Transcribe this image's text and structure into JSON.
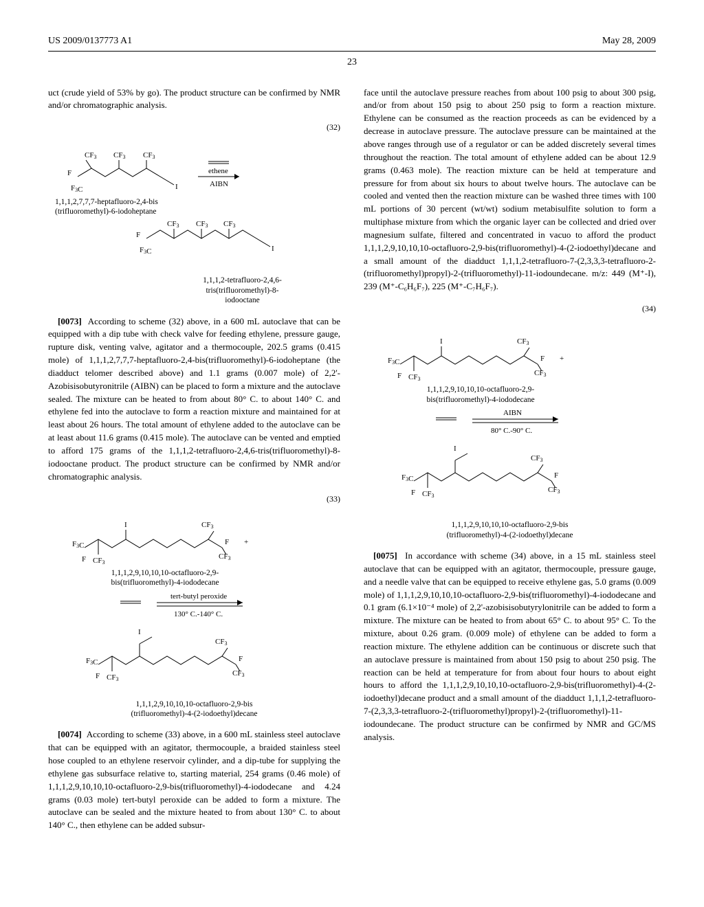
{
  "header": {
    "pub_number": "US 2009/0137773 A1",
    "date": "May 28, 2009"
  },
  "page_number": "23",
  "col1": {
    "intro_continued": "uct (crude yield of 53% by go). The product structure can be confirmed by NMR and/or chromatographic analysis.",
    "scheme32": {
      "num": "(32)",
      "reagent_top": "ethene",
      "reagent_bottom": "AIBN",
      "left_caption": "1,1,1,2,7,7,7-heptafluoro-2,4-bis\n(trifluoromethyl)-6-iodoheptane",
      "right_caption": "1,1,1,2-tetrafluoro-2,4,6-\ntris(trifluoromethyl)-8-\niodooctane"
    },
    "p73_num": "[0073]",
    "p73": "According to scheme (32) above, in a 600 mL autoclave that can be equipped with a dip tube with check valve for feeding ethylene, pressure gauge, rupture disk, venting valve, agitator and a thermocouple, 202.5 grams (0.415 mole) of 1,1,1,2,7,7,7-heptafluoro-2,4-bis(trifluoromethyl)-6-iodoheptane (the diadduct telomer described above) and 1.1 grams (0.007 mole) of 2,2'-Azobisisobutyronitrile (AIBN) can be placed to form a mixture and the autoclave sealed. The mixture can be heated to from about 80° C. to about 140° C. and ethylene fed into the autoclave to form a reaction mixture and maintained for at least about 26 hours. The total amount of ethylene added to the autoclave can be at least about 11.6 grams (0.415 mole). The autoclave can be vented and emptied to afford 175 grams of the 1,1,1,2-tetrafluoro-2,4,6-tris(trifluoromethyl)-8-iodooctane product. The product structure can be confirmed by NMR and/or chromatographic analysis.",
    "scheme33": {
      "num": "(33)",
      "upper_caption": "1,1,1,2,9,10,10,10-octafluoro-2,9-\nbis(trifluoromethyl)-4-iododecane",
      "reagent_top": "tert-butyl peroxide",
      "reagent_bottom": "130° C.-140° C.",
      "lower_caption": "1,1,1,2,9,10,10,10-octafluoro-2,9-bis\n(trifluoromethyl)-4-(2-iodoethyl)decane"
    },
    "p74_num": "[0074]",
    "p74": "According to scheme (33) above, in a 600 mL stainless steel autoclave that can be equipped with an agitator, thermocouple, a braided stainless steel hose coupled to an ethylene reservoir cylinder, and a dip-tube for supplying the ethylene gas subsurface relative to, starting material, 254 grams (0.46 mole) of 1,1,1,2,9,10,10,10-octafluoro-2,9-bis(trifluoromethyl)-4-iododecane and 4.24 grams (0.03 mole) tert-butyl peroxide can be added to form a mixture. The autoclave can be sealed and the mixture heated to from about 130° C. to about 140° C., then ethylene can be added subsur-"
  },
  "col2": {
    "p74_cont": "face until the autoclave pressure reaches from about 100 psig to about 300 psig, and/or from about 150 psig to about 250 psig to form a reaction mixture. Ethylene can be consumed as the reaction proceeds as can be evidenced by a decrease in autoclave pressure. The autoclave pressure can be maintained at the above ranges through use of a regulator or can be added discretely several times throughout the reaction. The total amount of ethylene added can be about 12.9 grams (0.463 mole). The reaction mixture can be held at temperature and pressure for from about six hours to about twelve hours. The autoclave can be cooled and vented then the reaction mixture can be washed three times with 100 mL portions of 30 percent (wt/wt) sodium metabisulfite solution to form a multiphase mixture from which the organic layer can be collected and dried over magnesium sulfate, filtered and concentrated in vacuo to afford the product 1,1,1,2,9,10,10,10-octafluoro-2,9-bis(trifluoromethyl)-4-(2-iodoethyl)decane and a small amount of the diadduct 1,1,1,2-tetrafluoro-7-(2,3,3,3-tetrafluoro-2-(trifluoromethyl)propyl)-2-(trifluoromethyl)-11-iodoundecane. m/z: 449 (M⁺-I), 239 (M⁺-C₆H₆F₇), 225 (M⁺-C₇H₆F₇).",
    "scheme34": {
      "num": "(34)",
      "upper_caption": "1,1,1,2,9,10,10,10-octafluoro-2,9-\nbis(trifluoromethyl)-4-iododecane",
      "reagent_top": "AIBN",
      "reagent_bottom": "80° C.-90° C.",
      "lower_caption": "1,1,1,2,9,10,10,10-octafluoro-2,9-bis\n(trifluoromethyl)-4-(2-iodoethyl)decane"
    },
    "p75_num": "[0075]",
    "p75": "In accordance with scheme (34) above, in a 15 mL stainless steel autoclave that can be equipped with an agitator, thermocouple, pressure gauge, and a needle valve that can be equipped to receive ethylene gas, 5.0 grams (0.009 mole) of 1,1,1,2,9,10,10,10-octafluoro-2,9-bis(trifluoromethyl)-4-iododecane and 0.1 gram (6.1×10⁻⁴ mole) of 2,2'-azobisisobutyrylonitrile can be added to form a mixture. The mixture can be heated to from about 65° C. to about 95° C. To the mixture, about 0.26 gram. (0.009 mole) of ethylene can be added to form a reaction mixture. The ethylene addition can be continuous or discrete such that an autoclave pressure is maintained from about 150 psig to about 250 psig. The reaction can be held at temperature for from about four hours to about eight hours to afford the 1,1,1,2,9,10,10,10-octafluoro-2,9-bis(trifluoromethyl)-4-(2-iodoethyl)decane product and a small amount of the diadduct 1,1,1,2-tetrafluoro-7-(2,3,3,3-tetrafluoro-2-(trifluoromethyl)propyl)-2-(trifluoromethyl)-11-iodoundecane. The product structure can be confirmed by NMR and GC/MS analysis."
  }
}
